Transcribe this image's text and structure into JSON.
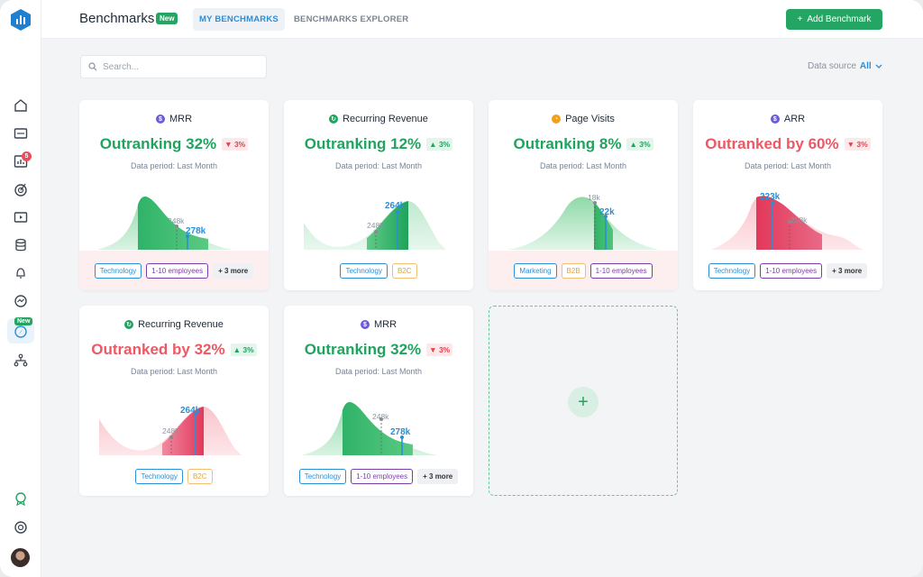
{
  "header": {
    "title": "Benchmarks",
    "new_badge": "New",
    "tabs": [
      {
        "label": "MY BENCHMARKS",
        "active": true
      },
      {
        "label": "BENCHMARKS EXPLORER",
        "active": false
      }
    ],
    "add_button": "Add Benchmark"
  },
  "sidebar": {
    "notification_count": "5",
    "new_badge": "New"
  },
  "search": {
    "placeholder": "Search..."
  },
  "data_source": {
    "label": "Data source",
    "value": "All"
  },
  "cards": [
    {
      "metric": "MRR",
      "icon": "dollar-icon",
      "icon_color": "#6a5bd6",
      "rank": "Outranking 32%",
      "status": "good",
      "change": "3%",
      "direction": "down",
      "period": "Data period: Last Month",
      "labels": [
        "248k",
        "278k"
      ],
      "tags": [
        {
          "label": "Technology",
          "style": "blue"
        },
        {
          "label": "1-10 employees",
          "style": "purple"
        },
        {
          "label": "+ 3 more",
          "style": "more"
        }
      ],
      "tag_bg": "#fdeff0"
    },
    {
      "metric": "Recurring Revenue",
      "icon": "revenue-icon",
      "icon_color": "#21a35f",
      "rank": "Outranking 12%",
      "status": "good",
      "change": "3%",
      "direction": "up",
      "period": "Data period: Last Month",
      "labels": [
        "248k",
        "264k"
      ],
      "tags": [
        {
          "label": "Technology",
          "style": "blue"
        },
        {
          "label": "B2C",
          "style": "yellow"
        }
      ],
      "tag_bg": "#ffffff"
    },
    {
      "metric": "Page Visits",
      "icon": "page-visits-icon",
      "icon_color": "#f0a020",
      "rank": "Outranking 8%",
      "status": "good",
      "change": "3%",
      "direction": "up",
      "period": "Data period: Last Month",
      "labels": [
        "18k",
        "22k"
      ],
      "tags": [
        {
          "label": "Marketing",
          "style": "blue"
        },
        {
          "label": "B2B",
          "style": "yellow"
        },
        {
          "label": "1-10 employees",
          "style": "purple"
        }
      ],
      "tag_bg": "#fdeff0"
    },
    {
      "metric": "ARR",
      "icon": "dollar-icon",
      "icon_color": "#6a5bd6",
      "rank": "Outranked by 60%",
      "status": "bad",
      "change": "3%",
      "direction": "down",
      "period": "Data period: Last Month",
      "labels": [
        "223k",
        "258k"
      ],
      "tags": [
        {
          "label": "Technology",
          "style": "blue"
        },
        {
          "label": "1-10 employees",
          "style": "purple"
        },
        {
          "label": "+ 3 more",
          "style": "more"
        }
      ],
      "tag_bg": "#ffffff"
    },
    {
      "metric": "Recurring Revenue",
      "icon": "revenue-icon",
      "icon_color": "#21a35f",
      "rank": "Outranked by 32%",
      "status": "bad",
      "change": "3%",
      "direction": "up",
      "period": "Data period: Last Month",
      "labels": [
        "248k",
        "264k"
      ],
      "tags": [
        {
          "label": "Technology",
          "style": "blue"
        },
        {
          "label": "B2C",
          "style": "yellow"
        }
      ],
      "tag_bg": "#ffffff"
    },
    {
      "metric": "MRR",
      "icon": "dollar-icon",
      "icon_color": "#6a5bd6",
      "rank": "Outranking 32%",
      "status": "good",
      "change": "3%",
      "direction": "down",
      "period": "Data period: Last Month",
      "labels": [
        "248k",
        "278k"
      ],
      "tags": [
        {
          "label": "Technology",
          "style": "blue"
        },
        {
          "label": "1-10 employees",
          "style": "purple"
        },
        {
          "label": "+ 3 more",
          "style": "more"
        }
      ],
      "tag_bg": "#ffffff"
    }
  ],
  "add_card": {
    "symbol": "+"
  }
}
